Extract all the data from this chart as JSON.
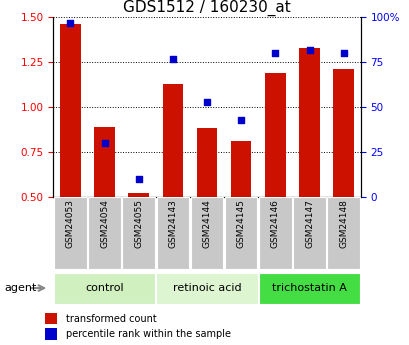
{
  "title": "GDS1512 / 160230_at",
  "categories": [
    "GSM24053",
    "GSM24054",
    "GSM24055",
    "GSM24143",
    "GSM24144",
    "GSM24145",
    "GSM24146",
    "GSM24147",
    "GSM24148"
  ],
  "red_bars": [
    1.46,
    0.89,
    0.52,
    1.13,
    0.88,
    0.81,
    1.19,
    1.33,
    1.21
  ],
  "blue_dots_pct": [
    97,
    30,
    10,
    77,
    53,
    43,
    80,
    82,
    80
  ],
  "ylim_left": [
    0.5,
    1.5
  ],
  "ylim_right": [
    0,
    100
  ],
  "yticks_left": [
    0.5,
    0.75,
    1.0,
    1.25,
    1.5
  ],
  "yticks_right": [
    0,
    25,
    50,
    75,
    100
  ],
  "ytick_labels_right": [
    "0",
    "25",
    "50",
    "75",
    "100%"
  ],
  "groups": [
    {
      "label": "control",
      "indices": [
        0,
        1,
        2
      ],
      "color": "#d0f0c0"
    },
    {
      "label": "retinoic acid",
      "indices": [
        3,
        4,
        5
      ],
      "color": "#ddf5d0"
    },
    {
      "label": "trichostatin A",
      "indices": [
        6,
        7,
        8
      ],
      "color": "#44dd44"
    }
  ],
  "bar_color": "#cc1100",
  "dot_color": "#0000cc",
  "grid_color": "#000000",
  "title_fontsize": 11,
  "tick_fontsize": 7.5,
  "legend_red": "transformed count",
  "legend_blue": "percentile rank within the sample",
  "agent_label": "agent",
  "background_color": "#ffffff",
  "xlabel_bg": "#c8c8c8"
}
